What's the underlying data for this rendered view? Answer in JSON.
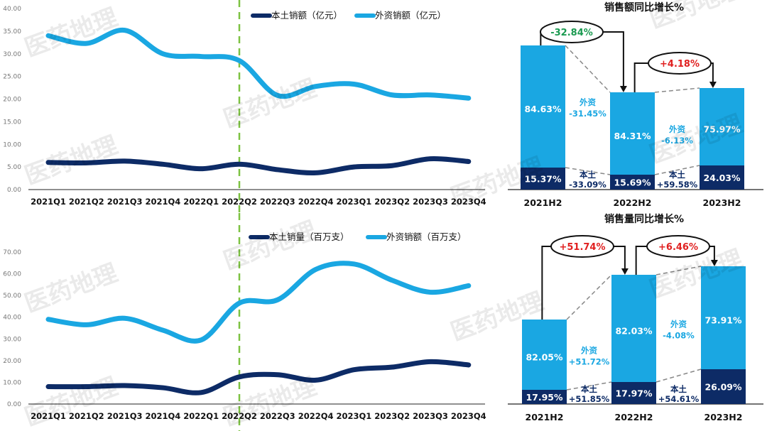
{
  "watermark": "医药地理",
  "colors": {
    "local": "#0d2b66",
    "foreign": "#1aa7e2",
    "divider": "#7dc242",
    "decline": "#1a9a50",
    "growth": "#e02020"
  },
  "chart_data": [
    {
      "type": "line",
      "categories": [
        "2021Q1",
        "2021Q2",
        "2021Q3",
        "2021Q4",
        "2022Q1",
        "2022Q2",
        "2022Q3",
        "2022Q4",
        "2023Q1",
        "2023Q2",
        "2023Q3",
        "2023Q4"
      ],
      "ylim": [
        0,
        40
      ],
      "yticks": [
        "0.00",
        "5.00",
        "10.00",
        "15.00",
        "20.00",
        "25.00",
        "30.00",
        "35.00",
        "40.00"
      ],
      "divider_at": "2022Q2",
      "legend": "top",
      "series": [
        {
          "name": "本土销额（亿元）",
          "values": [
            6.0,
            5.9,
            6.3,
            5.6,
            4.6,
            5.6,
            4.4,
            3.7,
            5.0,
            5.3,
            6.8,
            6.2
          ]
        },
        {
          "name": "外资销额（亿元）",
          "values": [
            34.0,
            32.3,
            35.2,
            30.0,
            29.4,
            28.5,
            20.8,
            22.8,
            23.3,
            20.9,
            20.9,
            20.2
          ]
        }
      ]
    },
    {
      "type": "line",
      "categories": [
        "2021Q1",
        "2021Q2",
        "2021Q3",
        "2021Q4",
        "2022Q1",
        "2022Q2",
        "2022Q3",
        "2022Q4",
        "2023Q1",
        "2023Q2",
        "2023Q3",
        "2023Q4"
      ],
      "ylim": [
        0,
        70
      ],
      "yticks": [
        "0.00",
        "10.00",
        "20.00",
        "30.00",
        "40.00",
        "50.00",
        "60.00",
        "70.00"
      ],
      "divider_at": "2022Q2",
      "legend": "top",
      "series": [
        {
          "name": "本土销量（百万支）",
          "values": [
            8.0,
            8.0,
            8.5,
            7.5,
            5.3,
            12.5,
            13.5,
            11.0,
            15.8,
            17.0,
            19.5,
            18.0
          ]
        },
        {
          "name": "外资销额（百万支）",
          "values": [
            39.0,
            36.5,
            39.5,
            34.0,
            29.5,
            46.5,
            48.0,
            62.0,
            64.5,
            57.0,
            51.5,
            54.5
          ]
        }
      ]
    },
    {
      "type": "bar",
      "title": "销售额同比增长%",
      "categories": [
        "2021H2",
        "2022H2",
        "2023H2"
      ],
      "foreign_share": [
        "84.63%",
        "84.31%",
        "75.97%"
      ],
      "local_share": [
        "15.37%",
        "15.69%",
        "24.03%"
      ],
      "total_change": [
        "-32.84%",
        "+4.18%"
      ],
      "foreign_label": "外资",
      "local_label": "本土",
      "foreign_change": [
        "-31.45%",
        "-6.13%"
      ],
      "local_change": [
        "-33.09%",
        "+59.58%"
      ]
    },
    {
      "type": "bar",
      "title": "销售量同比增长%",
      "categories": [
        "2021H2",
        "2022H2",
        "2023H2"
      ],
      "foreign_share": [
        "82.05%",
        "82.03%",
        "73.91%"
      ],
      "local_share": [
        "17.95%",
        "17.97%",
        "26.09%"
      ],
      "total_change": [
        "+51.74%",
        "+6.46%"
      ],
      "foreign_label": "外资",
      "local_label": "本土",
      "foreign_change": [
        "+51.72%",
        "-4.08%"
      ],
      "local_change": [
        "+51.85%",
        "+54.61%"
      ]
    }
  ]
}
